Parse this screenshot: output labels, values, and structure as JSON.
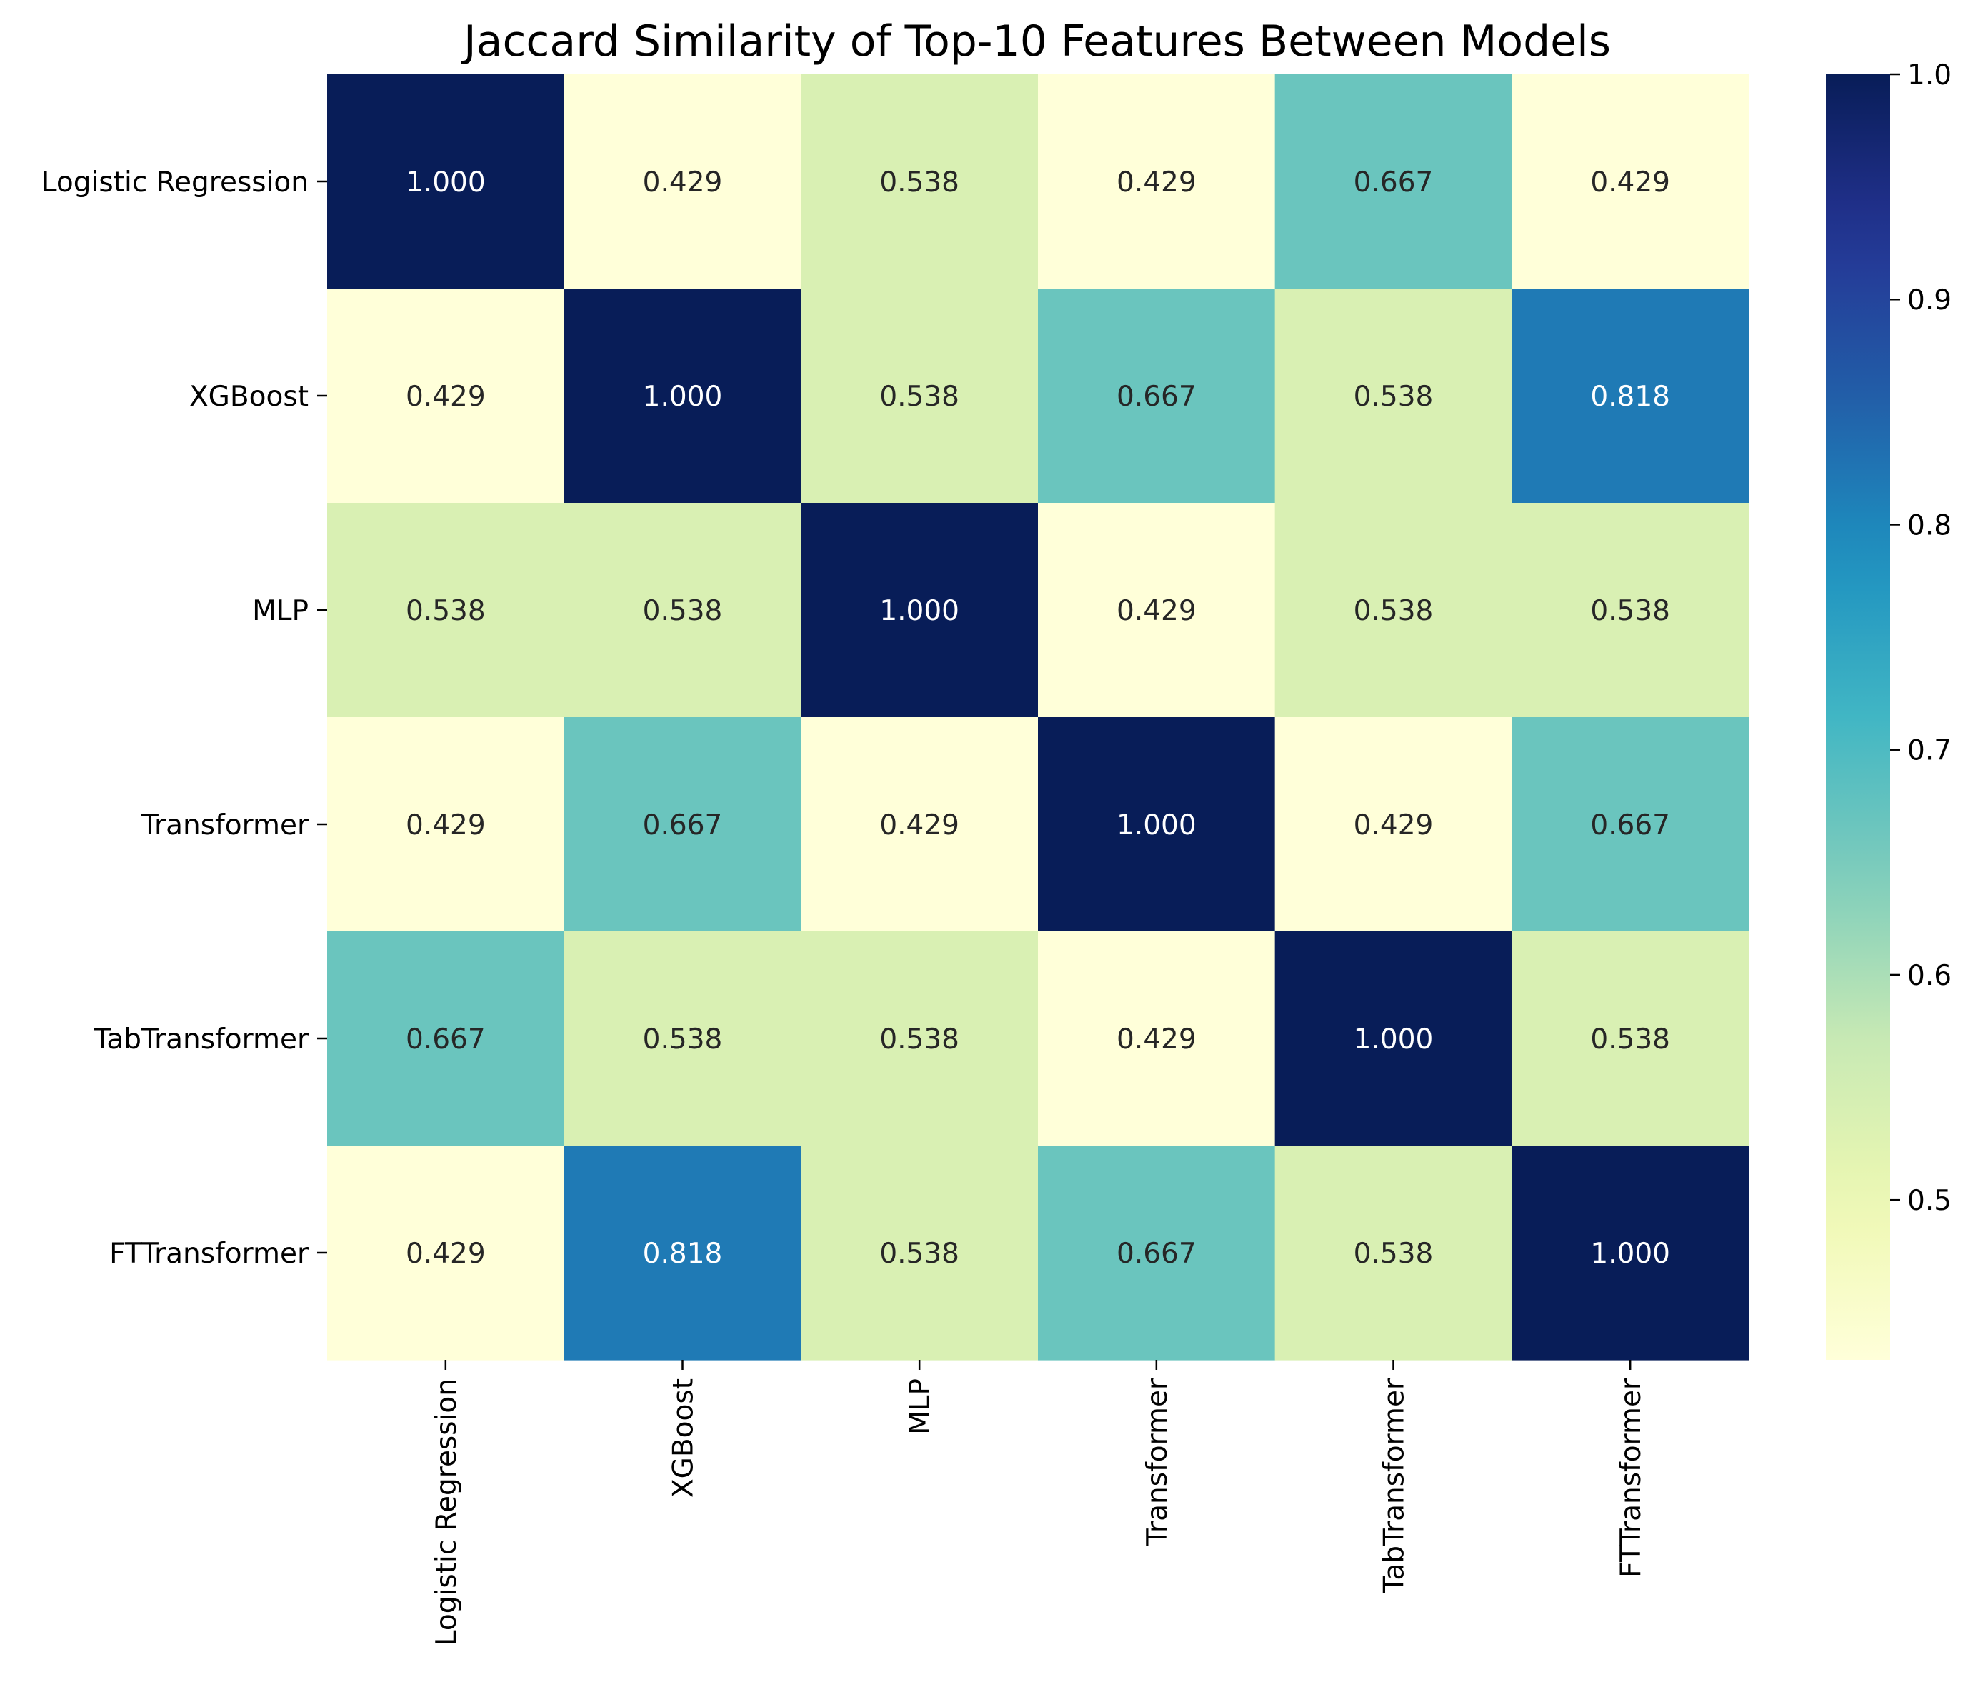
{
  "chart_data": {
    "type": "heatmap",
    "title": "Jaccard Similarity of Top-10 Features Between Models",
    "xlabel": "",
    "ylabel": "",
    "rows": [
      "Logistic Regression",
      "XGBoost",
      "MLP",
      "Transformer",
      "TabTransformer",
      "FTTransformer"
    ],
    "columns": [
      "Logistic Regression",
      "XGBoost",
      "MLP",
      "Transformer",
      "TabTransformer",
      "FTTransformer"
    ],
    "values": [
      [
        1.0,
        0.429,
        0.538,
        0.429,
        0.667,
        0.429
      ],
      [
        0.429,
        1.0,
        0.538,
        0.667,
        0.538,
        0.818
      ],
      [
        0.538,
        0.538,
        1.0,
        0.429,
        0.538,
        0.538
      ],
      [
        0.429,
        0.667,
        0.429,
        1.0,
        0.429,
        0.667
      ],
      [
        0.667,
        0.538,
        0.538,
        0.429,
        1.0,
        0.538
      ],
      [
        0.429,
        0.818,
        0.538,
        0.667,
        0.538,
        1.0
      ]
    ],
    "value_format": "0.000",
    "colormap": "YlGnBu",
    "colorbar": {
      "range": [
        0.429,
        1.0
      ],
      "ticks": [
        0.5,
        0.6,
        0.7,
        0.8,
        0.9,
        1.0
      ],
      "tick_labels": [
        "0.5",
        "0.6",
        "0.7",
        "0.8",
        "0.9",
        "1.0"
      ]
    },
    "grid": false
  }
}
